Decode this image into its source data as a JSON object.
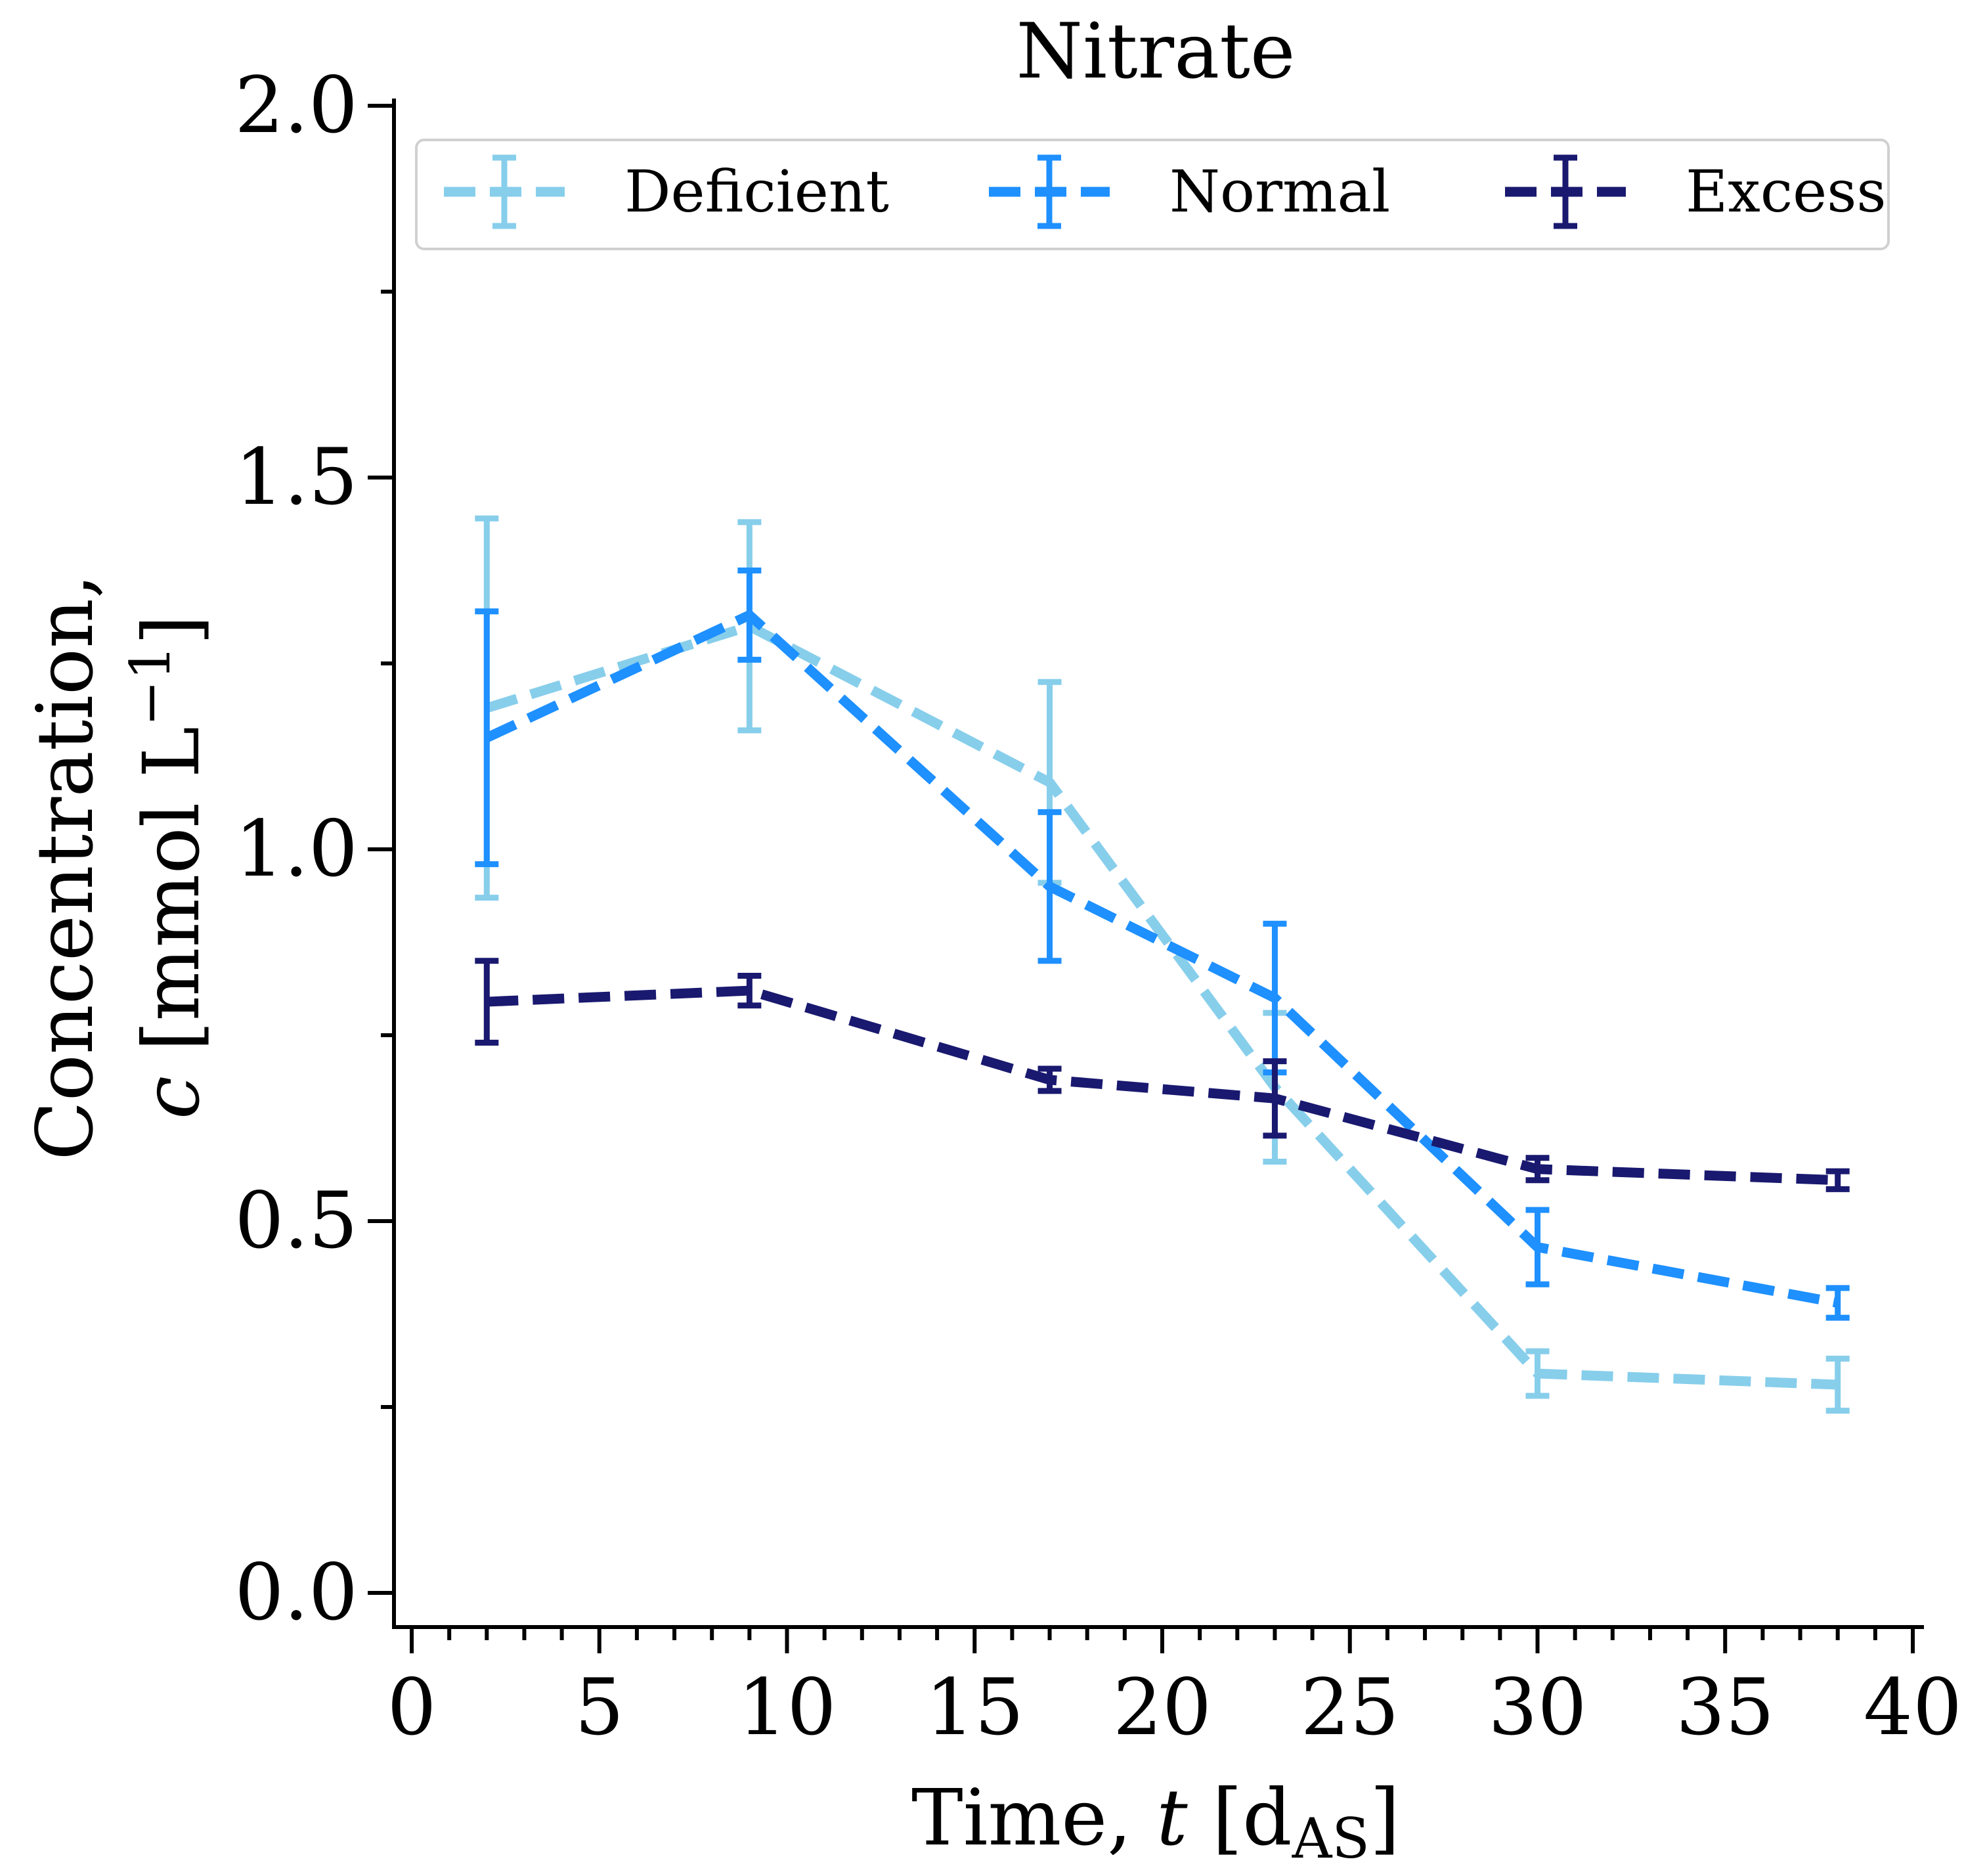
{
  "chart_data": {
    "type": "line",
    "title": "Nitrate",
    "xlabel": {
      "prefix": "Time, ",
      "var": "t",
      "unit_open": " [d",
      "unit_sub": "AS",
      "unit_close": "]"
    },
    "ylabel": {
      "line1": "Concentration,",
      "var": "c",
      "unit": " [mmol L",
      "unit_sup": "−1",
      "unit_close": "]"
    },
    "xlim": [
      0,
      40
    ],
    "ylim": [
      0.0,
      2.0
    ],
    "xticks": [
      0,
      5,
      10,
      15,
      20,
      25,
      30,
      35,
      40
    ],
    "xtick_labels": [
      "0",
      "5",
      "10",
      "15",
      "20",
      "25",
      "30",
      "35",
      "40"
    ],
    "yticks": [
      0.0,
      0.5,
      1.0,
      1.5,
      2.0
    ],
    "ytick_labels": [
      "0.0",
      "0.5",
      "1.0",
      "1.5",
      "2.0"
    ],
    "grid": false,
    "legend_position": "top",
    "series": [
      {
        "name": "Deficient",
        "color": "#87ceeb",
        "x": [
          2,
          9,
          17,
          23,
          30,
          38
        ],
        "y": [
          1.19,
          1.3,
          1.09,
          0.68,
          0.295,
          0.28
        ],
        "err": [
          0.255,
          0.14,
          0.135,
          0.1,
          0.03,
          0.035
        ]
      },
      {
        "name": "Normal",
        "color": "#1e90ff",
        "x": [
          2,
          9,
          17,
          23,
          30,
          38
        ],
        "y": [
          1.15,
          1.315,
          0.95,
          0.8,
          0.465,
          0.39
        ],
        "err": [
          0.17,
          0.06,
          0.1,
          0.1,
          0.05,
          0.02
        ]
      },
      {
        "name": "Excess",
        "color": "#191970",
        "x": [
          2,
          9,
          17,
          23,
          30,
          38
        ],
        "y": [
          0.795,
          0.81,
          0.69,
          0.665,
          0.57,
          0.555
        ],
        "err": [
          0.055,
          0.02,
          0.015,
          0.05,
          0.015,
          0.012
        ]
      }
    ]
  }
}
